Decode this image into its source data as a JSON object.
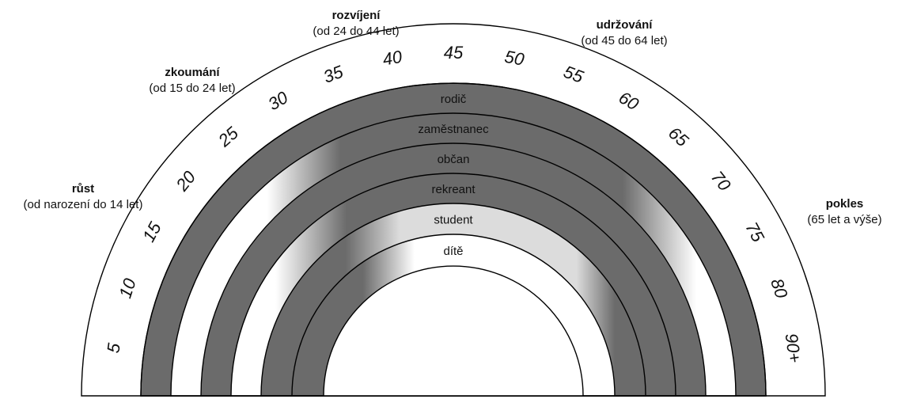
{
  "colors": {
    "dark": "#6b6b6b",
    "light": "#dcdcdc",
    "white": "#ffffff",
    "line": "#000000"
  },
  "stages": [
    {
      "name": "růst",
      "range": "(od narození do 14 let)"
    },
    {
      "name": "zkoumání",
      "range": "(od 15 do 24 let)"
    },
    {
      "name": "rozvíjení",
      "range": "(od 24 do 44 let)"
    },
    {
      "name": "udržování",
      "range": "(od 45 do 64 let)"
    },
    {
      "name": "pokles",
      "range": "(65 let a výše)"
    }
  ],
  "ages": [
    "5",
    "10",
    "15",
    "20",
    "25",
    "30",
    "35",
    "40",
    "45",
    "50",
    "55",
    "60",
    "65",
    "70",
    "75",
    "80",
    "90+"
  ],
  "roles": [
    {
      "label": "rodič",
      "fill": "gradient-rodic"
    },
    {
      "label": "zaměstnanec",
      "fill": "gradient-zam"
    },
    {
      "label": "občan",
      "fill": "dark"
    },
    {
      "label": "rekreant",
      "fill": "gradient-rekreant"
    },
    {
      "label": "student",
      "fill": "gradient-student"
    },
    {
      "label": "dítě",
      "fill": "gradient-dite"
    }
  ]
}
